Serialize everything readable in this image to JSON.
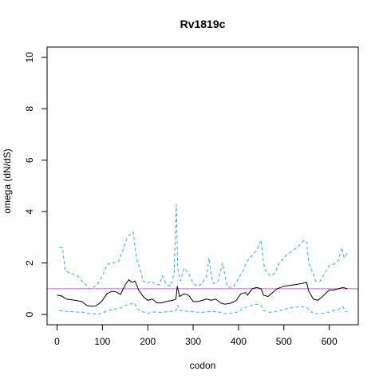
{
  "chart_data": {
    "type": "line",
    "title": "Rv1819c",
    "xlabel": "codon",
    "ylabel": "omega (dN/dS)",
    "xlim": [
      -22,
      664
    ],
    "ylim": [
      -0.4,
      10.4
    ],
    "xticks": [
      0,
      100,
      200,
      300,
      400,
      500,
      600
    ],
    "yticks": [
      0,
      2,
      4,
      6,
      8,
      10
    ],
    "reference_line": {
      "y": 1,
      "color": "#cc66cc"
    },
    "grid": false,
    "series": [
      {
        "color": "#000000",
        "dash": "solid",
        "points": [
          [
            0,
            0.75
          ],
          [
            10,
            0.72
          ],
          [
            20,
            0.6
          ],
          [
            40,
            0.55
          ],
          [
            55,
            0.5
          ],
          [
            65,
            0.35
          ],
          [
            75,
            0.32
          ],
          [
            85,
            0.33
          ],
          [
            95,
            0.45
          ],
          [
            100,
            0.55
          ],
          [
            110,
            0.8
          ],
          [
            120,
            0.9
          ],
          [
            130,
            0.88
          ],
          [
            140,
            0.78
          ],
          [
            150,
            1.15
          ],
          [
            158,
            1.35
          ],
          [
            165,
            1.25
          ],
          [
            172,
            1.3
          ],
          [
            180,
            0.95
          ],
          [
            190,
            0.7
          ],
          [
            200,
            0.55
          ],
          [
            210,
            0.6
          ],
          [
            220,
            0.45
          ],
          [
            230,
            0.45
          ],
          [
            240,
            0.5
          ],
          [
            255,
            0.55
          ],
          [
            262,
            0.6
          ],
          [
            265,
            1.1
          ],
          [
            270,
            0.7
          ],
          [
            280,
            0.8
          ],
          [
            290,
            0.75
          ],
          [
            300,
            0.5
          ],
          [
            310,
            0.5
          ],
          [
            320,
            0.55
          ],
          [
            330,
            0.6
          ],
          [
            340,
            0.55
          ],
          [
            350,
            0.6
          ],
          [
            360,
            0.45
          ],
          [
            370,
            0.4
          ],
          [
            385,
            0.45
          ],
          [
            395,
            0.55
          ],
          [
            405,
            0.8
          ],
          [
            415,
            0.85
          ],
          [
            420,
            0.75
          ],
          [
            430,
            1.0
          ],
          [
            440,
            1.05
          ],
          [
            450,
            1.0
          ],
          [
            455,
            0.75
          ],
          [
            465,
            0.7
          ],
          [
            475,
            0.85
          ],
          [
            485,
            1.0
          ],
          [
            500,
            1.1
          ],
          [
            520,
            1.15
          ],
          [
            540,
            1.2
          ],
          [
            550,
            1.25
          ],
          [
            555,
            0.9
          ],
          [
            565,
            0.6
          ],
          [
            575,
            0.55
          ],
          [
            585,
            0.7
          ],
          [
            600,
            0.95
          ],
          [
            610,
            0.95
          ],
          [
            620,
            1.0
          ],
          [
            630,
            1.05
          ],
          [
            640,
            1.0
          ]
        ]
      },
      {
        "color": "#3fa8e0",
        "dash": "dashed",
        "points": [
          [
            5,
            2.6
          ],
          [
            12,
            2.6
          ],
          [
            18,
            1.7
          ],
          [
            30,
            1.6
          ],
          [
            45,
            1.5
          ],
          [
            55,
            1.3
          ],
          [
            60,
            1.25
          ],
          [
            70,
            1.0
          ],
          [
            80,
            1.05
          ],
          [
            90,
            1.2
          ],
          [
            100,
            1.5
          ],
          [
            110,
            1.95
          ],
          [
            120,
            2.0
          ],
          [
            135,
            2.05
          ],
          [
            145,
            2.5
          ],
          [
            155,
            3.0
          ],
          [
            160,
            3.1
          ],
          [
            168,
            3.2
          ],
          [
            175,
            2.2
          ],
          [
            182,
            1.8
          ],
          [
            190,
            1.3
          ],
          [
            198,
            1.2
          ],
          [
            208,
            1.3
          ],
          [
            215,
            1.2
          ],
          [
            225,
            1.15
          ],
          [
            232,
            1.5
          ],
          [
            240,
            1.2
          ],
          [
            250,
            1.1
          ],
          [
            258,
            1.6
          ],
          [
            263,
            4.3
          ],
          [
            266,
            1.8
          ],
          [
            272,
            1.3
          ],
          [
            280,
            1.8
          ],
          [
            290,
            1.6
          ],
          [
            300,
            1.2
          ],
          [
            310,
            1.1
          ],
          [
            320,
            1.2
          ],
          [
            330,
            1.5
          ],
          [
            335,
            2.2
          ],
          [
            340,
            1.5
          ],
          [
            345,
            1.2
          ],
          [
            355,
            1.3
          ],
          [
            365,
            2.0
          ],
          [
            375,
            1.1
          ],
          [
            380,
            1.05
          ],
          [
            390,
            1.1
          ],
          [
            400,
            1.4
          ],
          [
            410,
            1.7
          ],
          [
            420,
            2.1
          ],
          [
            430,
            2.3
          ],
          [
            440,
            2.5
          ],
          [
            450,
            2.9
          ],
          [
            455,
            2.0
          ],
          [
            460,
            1.7
          ],
          [
            470,
            1.5
          ],
          [
            480,
            1.6
          ],
          [
            490,
            2.0
          ],
          [
            505,
            2.3
          ],
          [
            520,
            2.5
          ],
          [
            535,
            2.7
          ],
          [
            545,
            2.9
          ],
          [
            550,
            2.8
          ],
          [
            555,
            2.0
          ],
          [
            562,
            1.7
          ],
          [
            570,
            1.3
          ],
          [
            580,
            1.3
          ],
          [
            590,
            1.6
          ],
          [
            600,
            1.9
          ],
          [
            610,
            1.95
          ],
          [
            620,
            2.1
          ],
          [
            628,
            2.6
          ],
          [
            633,
            2.2
          ],
          [
            640,
            2.4
          ]
        ]
      },
      {
        "color": "#3fa8e0",
        "dash": "dashed",
        "points": [
          [
            5,
            0.15
          ],
          [
            20,
            0.12
          ],
          [
            40,
            0.1
          ],
          [
            60,
            0.08
          ],
          [
            75,
            0.02
          ],
          [
            90,
            0.02
          ],
          [
            100,
            0.05
          ],
          [
            110,
            0.15
          ],
          [
            125,
            0.2
          ],
          [
            140,
            0.25
          ],
          [
            150,
            0.35
          ],
          [
            160,
            0.4
          ],
          [
            170,
            0.45
          ],
          [
            178,
            0.2
          ],
          [
            190,
            0.1
          ],
          [
            200,
            0.05
          ],
          [
            215,
            0.1
          ],
          [
            230,
            0.08
          ],
          [
            250,
            0.12
          ],
          [
            262,
            0.15
          ],
          [
            266,
            0.35
          ],
          [
            272,
            0.15
          ],
          [
            290,
            0.12
          ],
          [
            305,
            0.1
          ],
          [
            320,
            0.08
          ],
          [
            340,
            0.12
          ],
          [
            355,
            0.1
          ],
          [
            370,
            0.03
          ],
          [
            385,
            0.05
          ],
          [
            400,
            0.1
          ],
          [
            410,
            0.25
          ],
          [
            420,
            0.3
          ],
          [
            430,
            0.35
          ],
          [
            440,
            0.4
          ],
          [
            450,
            0.35
          ],
          [
            456,
            0.15
          ],
          [
            470,
            0.08
          ],
          [
            485,
            0.12
          ],
          [
            500,
            0.2
          ],
          [
            520,
            0.28
          ],
          [
            540,
            0.3
          ],
          [
            550,
            0.28
          ],
          [
            556,
            0.15
          ],
          [
            565,
            0.05
          ],
          [
            575,
            0.03
          ],
          [
            590,
            0.05
          ],
          [
            605,
            0.12
          ],
          [
            620,
            0.2
          ],
          [
            630,
            0.3
          ],
          [
            635,
            0.12
          ],
          [
            640,
            0.1
          ]
        ]
      }
    ]
  }
}
